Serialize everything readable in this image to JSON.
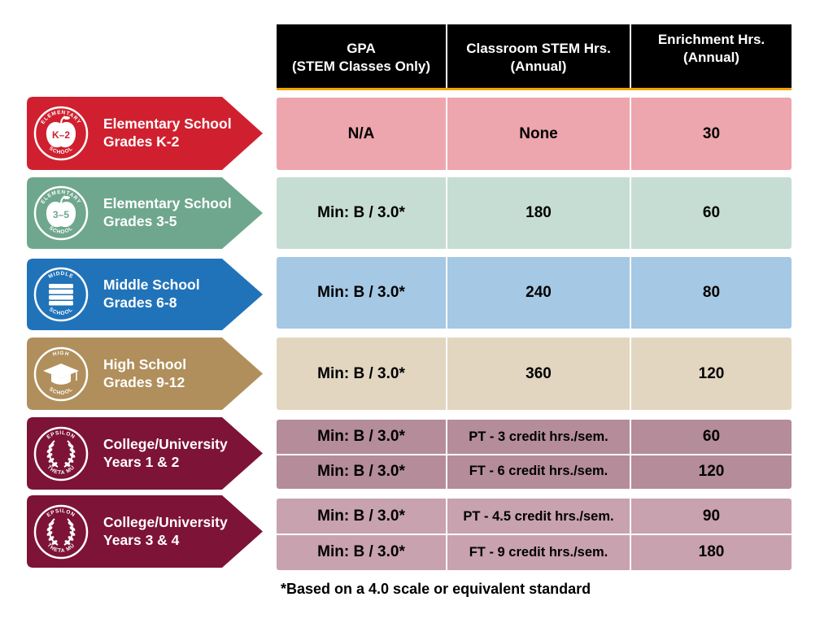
{
  "headers": [
    {
      "text": "GPA\n(STEM Classes Only)"
    },
    {
      "text": "Classroom STEM Hrs.\n(Annual)"
    },
    {
      "text": "Enrichment Hrs.\n(Annual)"
    }
  ],
  "levels": [
    {
      "line1": "Elementary School",
      "line2": "Grades K-2",
      "badge_top": "ELEMENTARY",
      "badge_bottom": "SCHOOL",
      "badge_mark": "K–2",
      "icon": "apple-icon",
      "color": "#d0202f",
      "row_color": "#eda6ad",
      "rows": [
        {
          "gpa": "N/A",
          "stem": "None",
          "enrich": "30"
        }
      ]
    },
    {
      "line1": "Elementary School",
      "line2": "Grades 3-5",
      "badge_top": "ELEMENTARY",
      "badge_bottom": "SCHOOL",
      "badge_mark": "3–5",
      "icon": "apple-icon",
      "color": "#6ea78e",
      "row_color": "#c6ddd4",
      "rows": [
        {
          "gpa": "Min: B / 3.0*",
          "stem": "180",
          "enrich": "60"
        }
      ]
    },
    {
      "line1": "Middle School",
      "line2": "Grades 6-8",
      "badge_top": "MIDDLE",
      "badge_bottom": "SCHOOL",
      "badge_mark": "",
      "icon": "books-icon",
      "color": "#2173b9",
      "row_color": "#a5c8e4",
      "rows": [
        {
          "gpa": "Min: B / 3.0*",
          "stem": "240",
          "enrich": "80"
        }
      ]
    },
    {
      "line1": "High School",
      "line2": "Grades 9-12",
      "badge_top": "HIGH",
      "badge_bottom": "SCHOOL",
      "badge_mark": "",
      "icon": "graduation-cap-icon",
      "color": "#b08f5c",
      "row_color": "#e2d6c1",
      "rows": [
        {
          "gpa": "Min: B / 3.0*",
          "stem": "360",
          "enrich": "120"
        }
      ]
    },
    {
      "line1": "College/University",
      "line2": "Years 1 & 2",
      "badge_top": "EPSILON",
      "badge_bottom": "THETA MU",
      "badge_mark": "",
      "icon": "laurel-wreath-icon",
      "color": "#7d1336",
      "row_color": "#b48c9a",
      "rows": [
        {
          "gpa": "Min: B / 3.0*",
          "stem": "PT - 3 credit hrs./sem.",
          "enrich": "60"
        },
        {
          "gpa": "Min: B / 3.0*",
          "stem": "FT - 6 credit hrs./sem.",
          "enrich": "120"
        }
      ]
    },
    {
      "line1": "College/University",
      "line2": "Years 3 & 4",
      "badge_top": "EPSILON",
      "badge_bottom": "THETA MU",
      "badge_mark": "",
      "icon": "laurel-wreath-icon",
      "color": "#7d1336",
      "row_color": "#c8a2ae",
      "rows": [
        {
          "gpa": "Min: B / 3.0*",
          "stem": "PT - 4.5 credit hrs./sem.",
          "enrich": "90"
        },
        {
          "gpa": "Min: B / 3.0*",
          "stem": "FT - 9 credit hrs./sem.",
          "enrich": "180"
        }
      ]
    }
  ],
  "footnote": "*Based on a 4.0 scale or equivalent standard"
}
